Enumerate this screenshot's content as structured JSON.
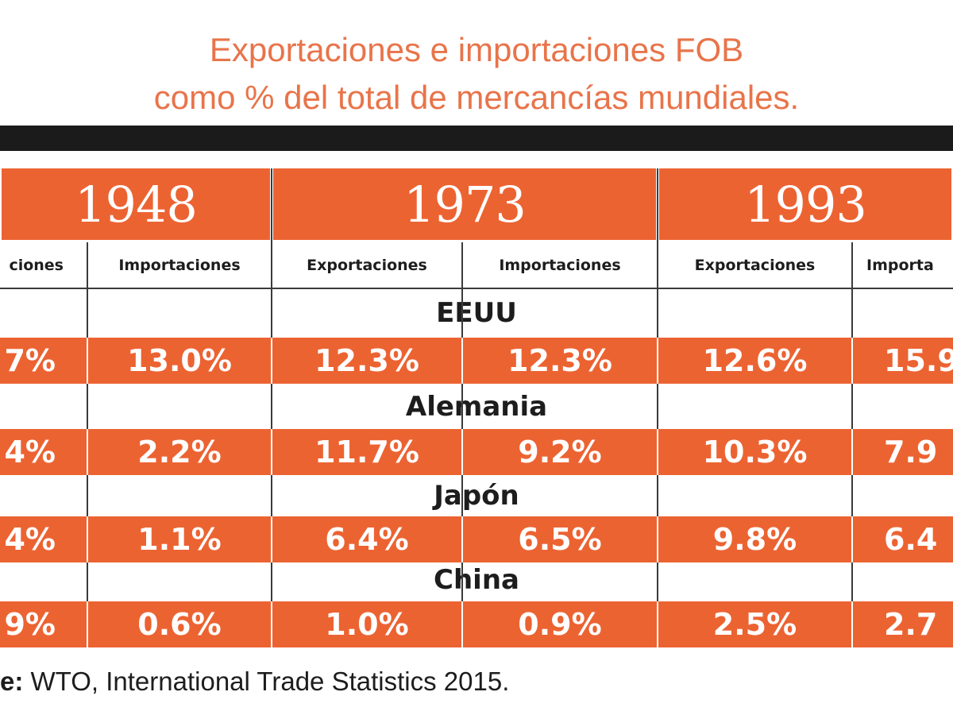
{
  "title_line1": "Exportaciones e importaciones FOB",
  "title_line2": "como % del total de mercancías mundiales.",
  "source_label": "e:",
  "source_text": "WTO, International Trade Statistics 2015.",
  "colors": {
    "accent": "#ec6332",
    "title": "#e8744a",
    "dark": "#1b1b1b"
  },
  "chart_data": {
    "type": "table",
    "title": "Exportaciones e importaciones FOB como % del total de mercancías mundiales.",
    "years": [
      "1948",
      "1973",
      "1993"
    ],
    "column_headers": [
      "ciones",
      "Importaciones",
      "Exportaciones",
      "Importaciones",
      "Exportaciones",
      "Importa"
    ],
    "rows": [
      {
        "country": "EEUU",
        "cells": [
          "7%",
          "13.0%",
          "12.3%",
          "12.3%",
          "12.6%",
          "15.9"
        ]
      },
      {
        "country": "Alemania",
        "cells": [
          "4%",
          "2.2%",
          "11.7%",
          "9.2%",
          "10.3%",
          "7.9"
        ]
      },
      {
        "country": "Japón",
        "cells": [
          "4%",
          "1.1%",
          "6.4%",
          "6.5%",
          "9.8%",
          "6.4"
        ]
      },
      {
        "country": "China",
        "cells": [
          "9%",
          "0.6%",
          "1.0%",
          "0.9%",
          "2.5%",
          "2.7"
        ]
      }
    ],
    "source": "WTO, International Trade Statistics 2015."
  }
}
